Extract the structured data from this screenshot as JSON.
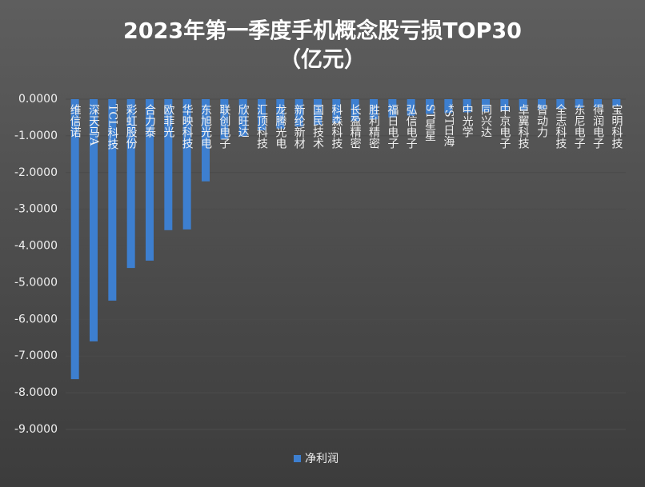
{
  "chart_data": {
    "type": "bar",
    "title": "2023年第一季度手机概念股亏损TOP30",
    "subtitle": "（亿元）",
    "categories": [
      "维信诺",
      "深天马A",
      "TCL科技",
      "彩虹股份",
      "合力泰",
      "欧菲光",
      "华映科技",
      "东旭光电",
      "联创电子",
      "欣旺达",
      "汇顶科技",
      "龙腾光电",
      "新纶新材",
      "国民技术",
      "科森科技",
      "长盈精密",
      "胜利精密",
      "福日电子",
      "弘信电子",
      "ST星星",
      "*ST日海",
      "中光学",
      "同兴达",
      "中京电子",
      "卓翼科技",
      "智动力",
      "全志科技",
      "东尼电子",
      "得润电子",
      "宝明科技"
    ],
    "series": [
      {
        "name": "净利润",
        "color": "#3d7fd0",
        "values": [
          -7.63,
          -6.6,
          -5.49,
          -4.6,
          -4.4,
          -3.57,
          -3.55,
          -2.24,
          -1.1,
          -1.02,
          -0.85,
          -0.8,
          -0.75,
          -0.7,
          -0.65,
          -0.6,
          -0.55,
          -0.5,
          -0.45,
          -0.4,
          -0.38,
          -0.36,
          -0.34,
          -0.32,
          -0.3,
          -0.28,
          -0.26,
          -0.24,
          -0.22,
          -0.2
        ]
      }
    ],
    "ylim": [
      -9,
      0
    ],
    "yticks": [
      {
        "value": 0,
        "label": "0.0000"
      },
      {
        "value": -1,
        "label": "-1.0000"
      },
      {
        "value": -2,
        "label": "-2.0000"
      },
      {
        "value": -3,
        "label": "-3.0000"
      },
      {
        "value": -4,
        "label": "-4.0000"
      },
      {
        "value": -5,
        "label": "-5.0000"
      },
      {
        "value": -6,
        "label": "-6.0000"
      },
      {
        "value": -7,
        "label": "-7.0000"
      },
      {
        "value": -8,
        "label": "-8.0000"
      },
      {
        "value": -9,
        "label": "-9.0000"
      }
    ],
    "grid": true,
    "legend": "bottom"
  }
}
